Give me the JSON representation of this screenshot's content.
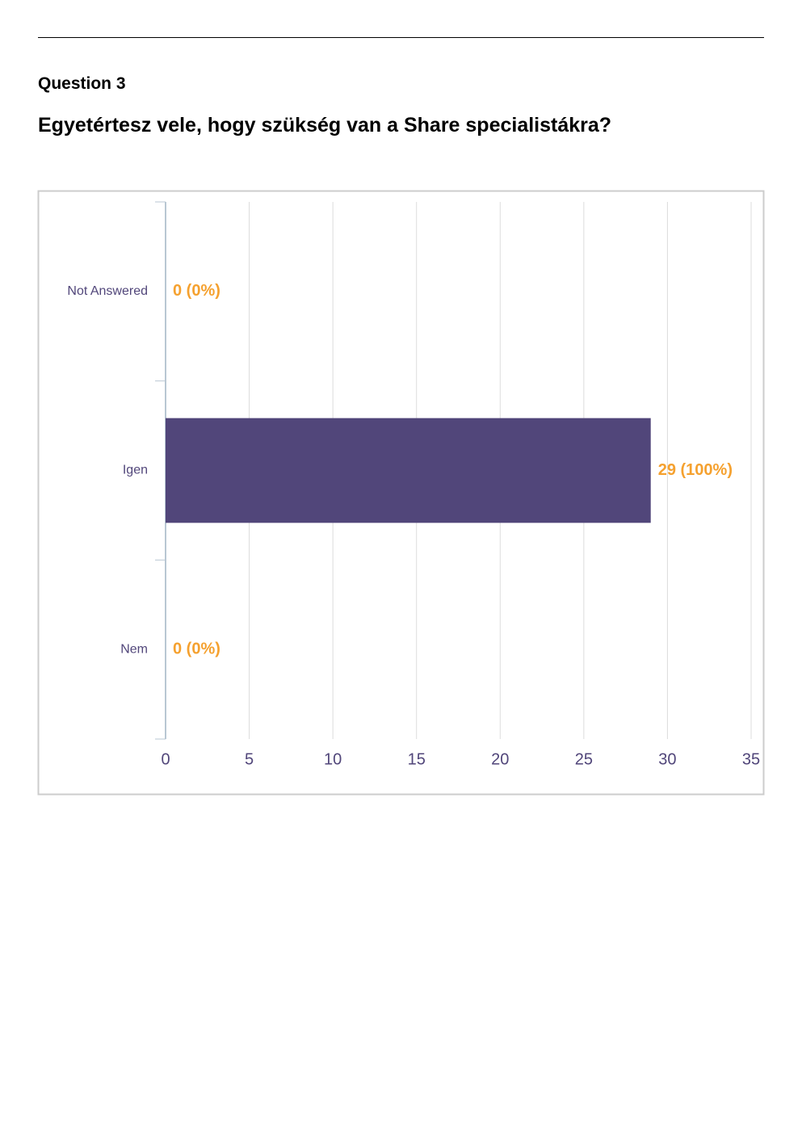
{
  "question_label": "Question 3",
  "question": "Egyetértesz vele, hogy szükség van a Share specialistákra?",
  "chart_data": {
    "type": "hbar",
    "categories": [
      "Not Answered",
      "Igen",
      "Nem"
    ],
    "values": [
      0,
      29,
      0
    ],
    "value_labels": [
      "0 (0%)",
      "29 (100%)",
      "0 (0%)"
    ],
    "color": "#51467a",
    "label_color": "#f5a12f",
    "xlim": [
      0,
      35
    ],
    "xticks": [
      0,
      5,
      10,
      15,
      20,
      25,
      30,
      35
    ],
    "grid": true
  }
}
